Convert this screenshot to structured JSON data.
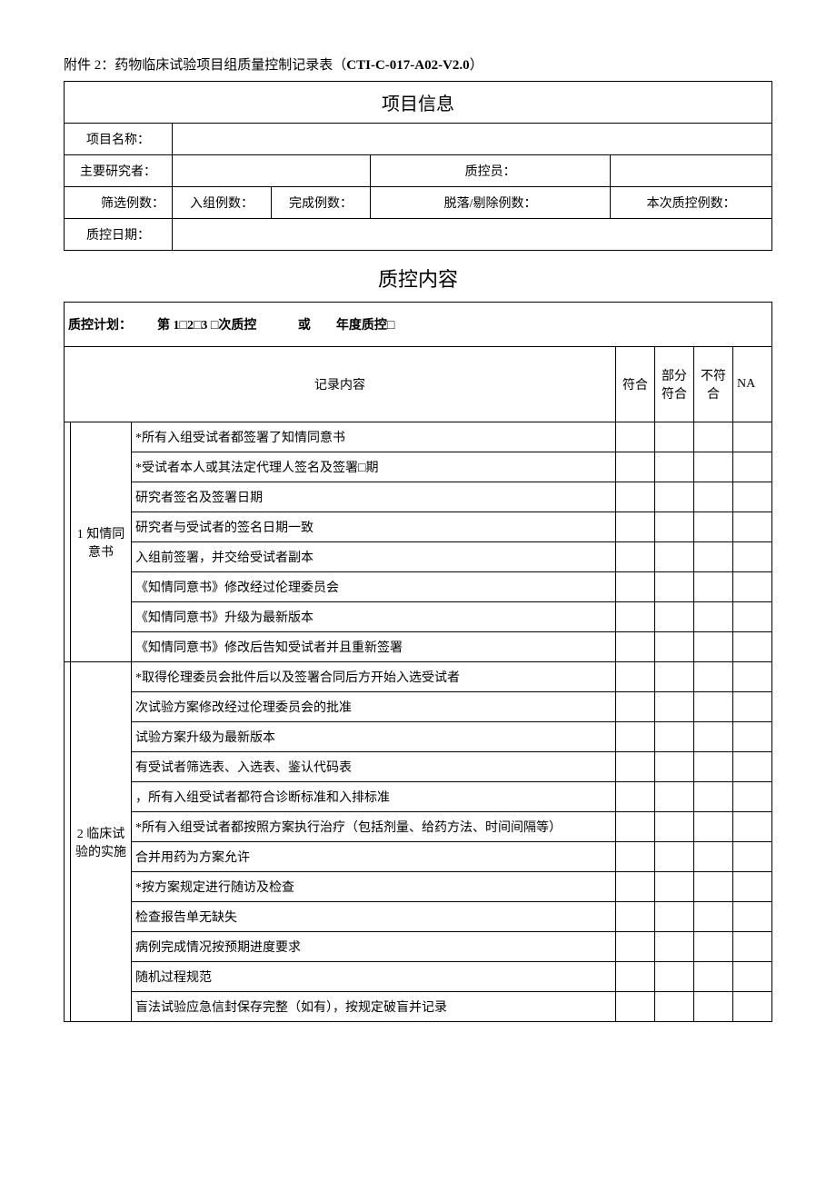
{
  "doc": {
    "title_prefix": "附件 2：",
    "title_main": "药物临床试验项目组质量控制记录表（",
    "title_code": "CTI-C-017-A02-V2.0",
    "title_suffix": "）"
  },
  "project_info": {
    "header": "项目信息",
    "project_name_label": "项目名称：",
    "pi_label": "主要研究者：",
    "qc_person_label": "质控员：",
    "screen_cnt_label": "筛选例数：",
    "enroll_cnt_label": "入组例数：",
    "complete_cnt_label": "完成例数：",
    "dropout_cnt_label": "脱落/剔除例数：",
    "this_qc_cnt_label": "本次质控例数：",
    "qc_date_label": "质控日期："
  },
  "qc": {
    "section_title": "质控内容",
    "plan_label": "质控计划：",
    "plan_text1": "第 1□2□3 □次质控",
    "plan_or": "或",
    "plan_text2": "年度质控□",
    "header_record": "记录内容",
    "header_conform": "符合",
    "header_partial": "部分符合",
    "header_nonconform": "不符合",
    "header_na": "NA",
    "sections": [
      {
        "label": "1 知情同意书",
        "items": [
          "*所有入组受试者都签署了知情同意书",
          "*受试者本人或其法定代理人签名及签署□期",
          "研究者签名及签署日期",
          "研究者与受试者的签名日期一致",
          "入组前签署，并交给受试者副本",
          "《知情同意书》修改经过伦理委员会",
          "《知情同意书》升级为最新版本",
          "《知情同意书》修改后告知受试者并且重新签署"
        ]
      },
      {
        "label": "2 临床试验的实施",
        "items": [
          "*取得伦理委员会批件后以及签署合同后方开始入选受试者",
          "次试验方案修改经过伦理委员会的批准",
          "试验方案升级为最新版本",
          "有受试者筛选表、入选表、鉴认代码表",
          "，所有入组受试者都符合诊断标准和入排标准",
          "*所有入组受试者都按照方案执行治疗（包括剂量、给药方法、时间间隔等）",
          "合并用药为方案允许",
          "*按方案规定进行随访及检查",
          "检查报告单无缺失",
          "病例完成情况按预期进度要求",
          "随机过程规范",
          "盲法试验应急信封保存完整（如有），按规定破盲并记录"
        ]
      }
    ]
  }
}
